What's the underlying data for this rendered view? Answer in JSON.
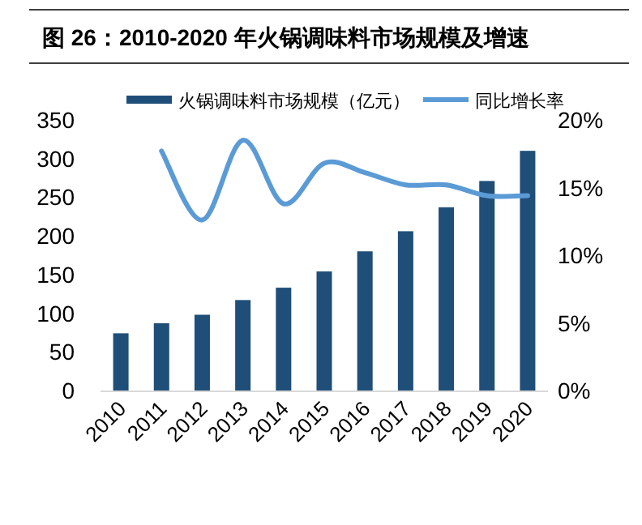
{
  "chart_data": {
    "type": "bar",
    "title": "图 26：2010-2020 年火锅调味料市场规模及增速",
    "categories": [
      "2010",
      "2011",
      "2012",
      "2013",
      "2014",
      "2015",
      "2016",
      "2017",
      "2018",
      "2019",
      "2020"
    ],
    "series": [
      {
        "name": "火锅调味料市场规模（亿元）",
        "color": "#1f4e79",
        "values": [
          74,
          87,
          98,
          117,
          133,
          154,
          180,
          206,
          237,
          271,
          310
        ]
      },
      {
        "name": "同比增长率",
        "color": "#5b9bd5",
        "type": "line",
        "axis": "y2",
        "values": [
          null,
          17.7,
          12.6,
          18.5,
          13.8,
          16.8,
          16.1,
          15.2,
          15.2,
          14.4,
          14.4
        ]
      }
    ],
    "ylim": [
      0,
      350
    ],
    "yticks": [
      0,
      50,
      100,
      150,
      200,
      250,
      300,
      350
    ],
    "y2lim": [
      0,
      20
    ],
    "y2ticks": [
      {
        "value": 0,
        "label": "0%"
      },
      {
        "value": 5,
        "label": "5%"
      },
      {
        "value": 10,
        "label": "10%"
      },
      {
        "value": 15,
        "label": "15%"
      },
      {
        "value": 20,
        "label": "20%"
      }
    ],
    "legend": "top",
    "grid": false
  }
}
